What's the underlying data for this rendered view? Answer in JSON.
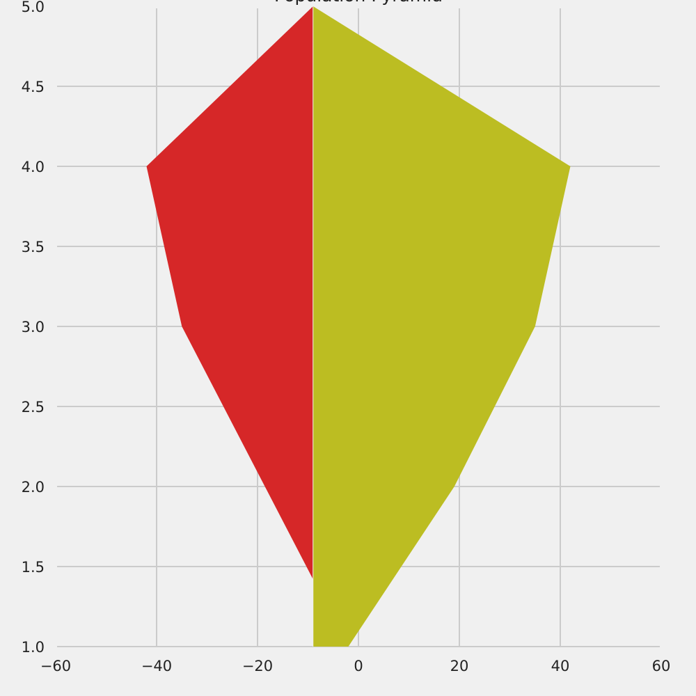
{
  "chart_data": {
    "type": "area",
    "title": "Population Pyramid",
    "xlabel": "",
    "ylabel": "",
    "xlim": [
      -60,
      60
    ],
    "ylim": [
      1.0,
      5.0
    ],
    "xticks": [
      -60,
      -40,
      -20,
      0,
      20,
      40,
      60
    ],
    "yticks": [
      1.0,
      1.5,
      2.0,
      2.5,
      3.0,
      3.5,
      4.0,
      4.5,
      5.0
    ],
    "xtick_labels": [
      "−60",
      "−40",
      "−20",
      "0",
      "20",
      "40",
      "60"
    ],
    "ytick_labels": [
      "1.0",
      "1.5",
      "2.0",
      "2.5",
      "3.0",
      "3.5",
      "4.0",
      "4.5",
      "5.0"
    ],
    "grid": true,
    "divider_x": -9,
    "series": [
      {
        "color": "#d62728",
        "side": "left",
        "points": [
          {
            "x": -9,
            "y": 5.0
          },
          {
            "x": -42,
            "y": 4.0
          },
          {
            "x": -35,
            "y": 3.0
          },
          {
            "x": -9,
            "y": 1.42
          }
        ]
      },
      {
        "color": "#bcbd22",
        "side": "right",
        "points": [
          {
            "x": -9,
            "y": 5.0
          },
          {
            "x": 42,
            "y": 4.0
          },
          {
            "x": 35,
            "y": 3.0
          },
          {
            "x": 19,
            "y": 2.0
          },
          {
            "x": -2,
            "y": 1.0
          },
          {
            "x": -9,
            "y": 1.0
          }
        ]
      }
    ]
  }
}
